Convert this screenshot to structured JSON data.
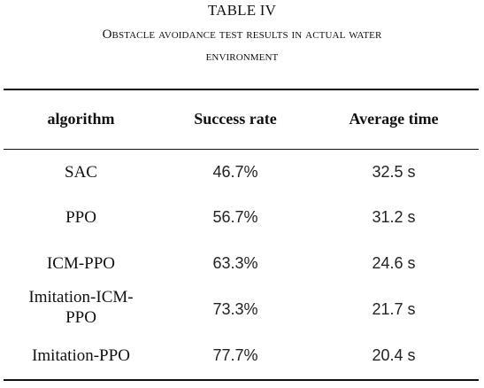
{
  "table": {
    "number": "TABLE IV",
    "caption_line1": "Obstacle avoidance test results in actual water",
    "caption_line2": "environment",
    "headers": [
      "algorithm",
      "Success rate",
      "Average time"
    ],
    "rows": [
      {
        "algorithm": "SAC",
        "success_rate": "46.7%",
        "average_time": "32.5 s"
      },
      {
        "algorithm": "PPO",
        "success_rate": "56.7%",
        "average_time": "31.2 s"
      },
      {
        "algorithm": "ICM-PPO",
        "success_rate": "63.3%",
        "average_time": "24.6 s"
      },
      {
        "algorithm_line1": "Imitation-ICM-",
        "algorithm_line2": "PPO",
        "success_rate": "73.3%",
        "average_time": "21.7 s"
      },
      {
        "algorithm": "Imitation-PPO",
        "success_rate": "77.7%",
        "average_time": "20.4 s"
      }
    ]
  },
  "chart_data": {
    "type": "table",
    "columns": [
      "algorithm",
      "Success rate",
      "Average time"
    ],
    "rows": [
      [
        "SAC",
        "46.7%",
        "32.5 s"
      ],
      [
        "PPO",
        "56.7%",
        "31.2 s"
      ],
      [
        "ICM-PPO",
        "63.3%",
        "24.6 s"
      ],
      [
        "Imitation-ICM-PPO",
        "73.3%",
        "21.7 s"
      ],
      [
        "Imitation-PPO",
        "77.7%",
        "20.4 s"
      ]
    ]
  }
}
